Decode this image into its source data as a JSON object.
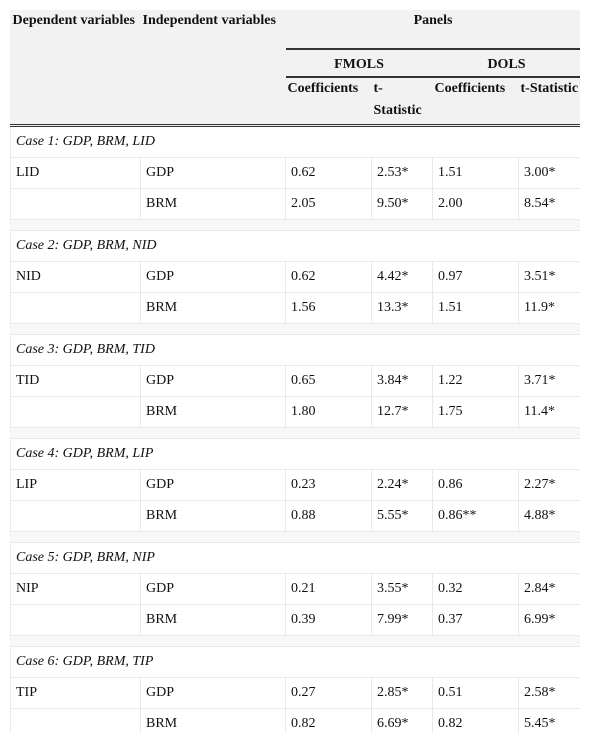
{
  "header": {
    "dependent": "Dependent variables",
    "independent": "Independent variables",
    "panels": "Panels",
    "methods": [
      "FMOLS",
      "DOLS"
    ],
    "columns": [
      "Coefficients",
      "t-Statistic",
      "Coefficients",
      "t-Statistic"
    ]
  },
  "cases": [
    {
      "title": "Case 1: GDP, BRM, LID",
      "rows": [
        {
          "dependent": "LID",
          "cells": [
            "GDP",
            "0.62",
            "2.53*",
            "1.51",
            "3.00*"
          ]
        },
        {
          "cells": [
            "BRM",
            "2.05",
            "9.50*",
            "2.00",
            "8.54*"
          ]
        }
      ]
    },
    {
      "title": "Case 2: GDP, BRM, NID",
      "rows": [
        {
          "dependent": "NID",
          "cells": [
            "GDP",
            "0.62",
            "4.42*",
            "0.97",
            "3.51*"
          ]
        },
        {
          "cells": [
            "BRM",
            "1.56",
            "13.3*",
            "1.51",
            "11.9*"
          ]
        }
      ]
    },
    {
      "title": "Case 3: GDP, BRM, TID",
      "rows": [
        {
          "dependent": "TID",
          "cells": [
            "GDP",
            "0.65",
            "3.84*",
            "1.22",
            "3.71*"
          ]
        },
        {
          "cells": [
            "BRM",
            "1.80",
            "12.7*",
            "1.75",
            "11.4*"
          ]
        }
      ]
    },
    {
      "title": "Case 4: GDP, BRM, LIP",
      "rows": [
        {
          "dependent": "LIP",
          "cells": [
            "GDP",
            "0.23",
            "2.24*",
            "0.86",
            "2.27*"
          ]
        },
        {
          "cells": [
            "BRM",
            "0.88",
            "5.55*",
            "0.86**",
            "4.88*"
          ]
        }
      ]
    },
    {
      "title": "Case 5: GDP, BRM, NIP",
      "rows": [
        {
          "dependent": "NIP",
          "cells": [
            "GDP",
            "0.21",
            "3.55*",
            "0.32",
            "2.84*"
          ]
        },
        {
          "cells": [
            "BRM",
            "0.39",
            "7.99*",
            "0.37",
            "6.99*"
          ]
        }
      ]
    },
    {
      "title": "Case 6: GDP, BRM, TIP",
      "rows": [
        {
          "dependent": "TIP",
          "cells": [
            "GDP",
            "0.27",
            "2.85*",
            "0.51",
            "2.58*"
          ]
        },
        {
          "cells": [
            "BRM",
            "0.82",
            "6.69*",
            "0.82",
            "5.45*"
          ]
        }
      ]
    }
  ]
}
